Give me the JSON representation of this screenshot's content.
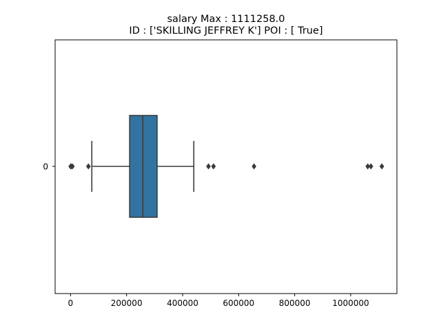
{
  "chart_data": {
    "type": "box",
    "orientation": "horizontal",
    "title_line1": "salary  Max : 1111258.0",
    "title_line2": "ID : ['SKILLING JEFFREY K']  POI : [ True]",
    "xlabel": "",
    "ylabel": "",
    "categories": [
      "0"
    ],
    "xlim": [
      -55000,
      1165000
    ],
    "x_ticks": [
      0,
      200000,
      400000,
      600000,
      800000,
      1000000
    ],
    "x_tick_labels": [
      "0",
      "200000",
      "400000",
      "600000",
      "800000",
      "1000000"
    ],
    "grid": false,
    "box": {
      "q1": 211000,
      "median": 258000,
      "q3": 309000,
      "whisker_low": 76000,
      "whisker_high": 440000,
      "color": "#3274a1",
      "line_color": "#3a3a3a"
    },
    "outliers": [
      477,
      6615,
      1800,
      63744,
      492375,
      510364,
      655037,
      1060932,
      1072321,
      1111258
    ]
  }
}
